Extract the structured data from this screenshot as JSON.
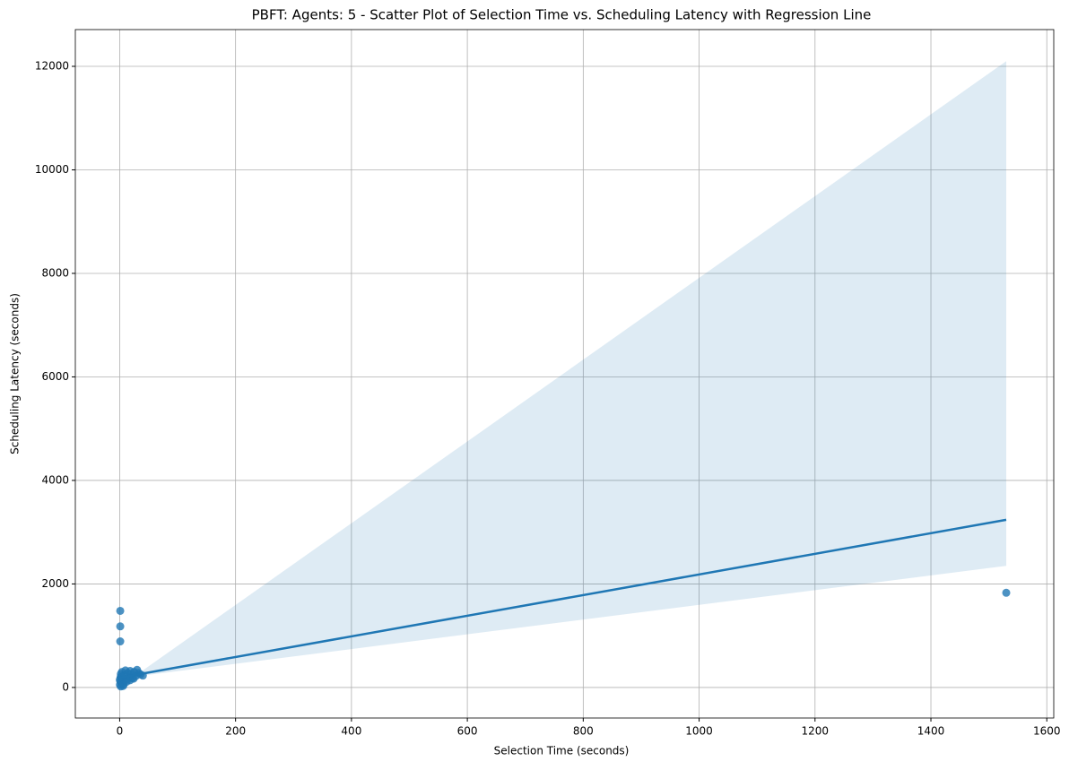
{
  "chart_data": {
    "type": "scatter",
    "title": "PBFT: Agents: 5 - Scatter Plot of Selection Time vs. Scheduling Latency with Regression Line",
    "x_label": "Selection Time (seconds)",
    "y_label": "Scheduling Latency (seconds)",
    "points": {
      "color": "#1f77b4",
      "x": [
        0.5,
        1,
        1.5,
        2,
        3,
        4,
        5,
        6,
        8,
        10,
        12,
        14,
        16,
        18,
        20,
        22,
        25,
        28,
        30,
        33,
        36,
        40,
        1,
        1,
        1,
        1530,
        2,
        5,
        0.3,
        3,
        7,
        12,
        18,
        24
      ],
      "y": [
        50,
        120,
        200,
        260,
        90,
        300,
        180,
        30,
        240,
        330,
        150,
        280,
        200,
        320,
        260,
        180,
        300,
        220,
        340,
        280,
        250,
        230,
        1480,
        1180,
        890,
        1830,
        20,
        100,
        150,
        210,
        60,
        110,
        140,
        170
      ]
    },
    "regression": {
      "color": "#1f77b4",
      "x": [
        0,
        1530
      ],
      "y": [
        190,
        3240
      ]
    },
    "band": {
      "color": "#1f77b4",
      "x": [
        0,
        40,
        1530
      ],
      "lower": [
        160,
        230,
        2350
      ],
      "upper": [
        220,
        330,
        12100
      ]
    },
    "xlim": [
      -76.5,
      1612
    ],
    "ylim": [
      -590,
      12710
    ],
    "xticks": [
      0,
      200,
      400,
      600,
      800,
      1000,
      1200,
      1400,
      1600
    ],
    "yticks": [
      0,
      2000,
      4000,
      6000,
      8000,
      10000,
      12000
    ],
    "grid": true
  }
}
